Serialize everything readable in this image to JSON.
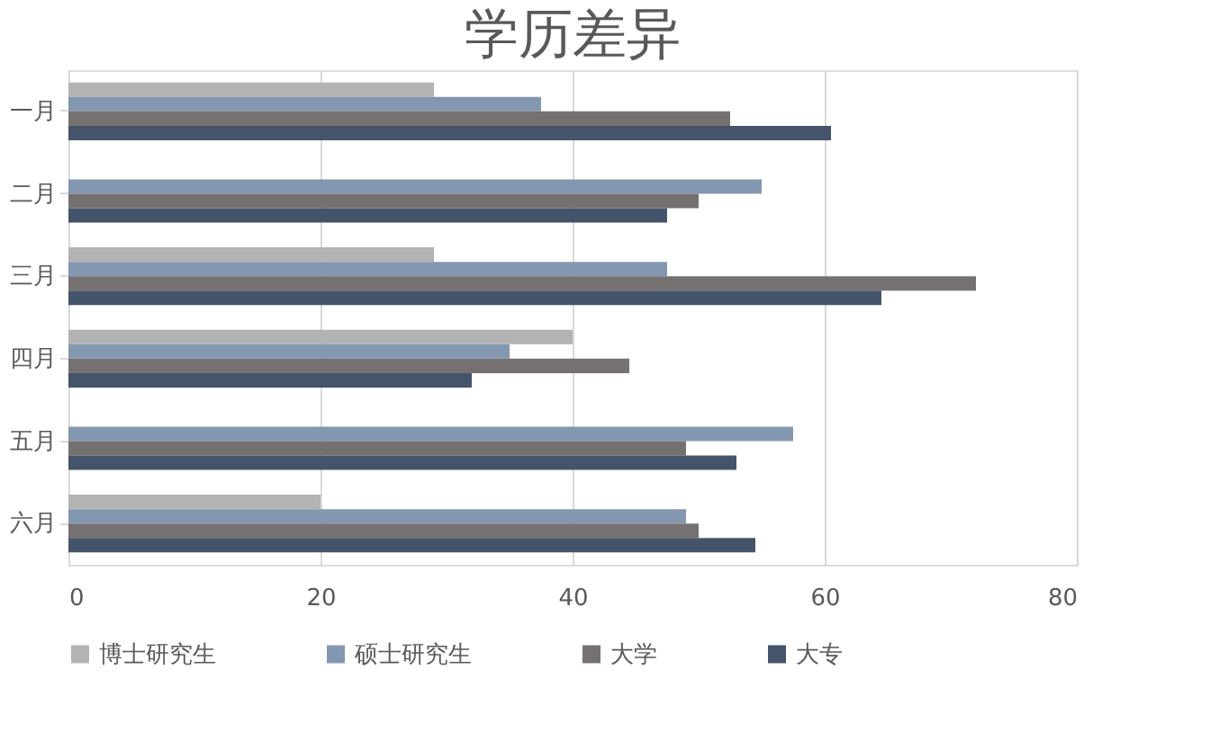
{
  "chart_data": {
    "type": "bar",
    "orientation": "horizontal",
    "title": "学历差异",
    "categories": [
      "一月",
      "二月",
      "三月",
      "四月",
      "五月",
      "六月"
    ],
    "series": [
      {
        "name": "博士研究生",
        "color": "#b3b3b3",
        "values": [
          29,
          0,
          29,
          40,
          0,
          20
        ]
      },
      {
        "name": "硕士研究生",
        "color": "#8497b0",
        "values": [
          37.5,
          55,
          47.5,
          35,
          57.5,
          49
        ]
      },
      {
        "name": "大学",
        "color": "#767171",
        "values": [
          52.5,
          50,
          72,
          44.5,
          49,
          50
        ]
      },
      {
        "name": "大专",
        "color": "#44546a",
        "values": [
          60.5,
          47.5,
          64.5,
          32,
          53,
          54.5
        ]
      }
    ],
    "xlim": [
      0,
      80
    ],
    "xticks": [
      0,
      20,
      40,
      60,
      80
    ],
    "grid": "x",
    "legend": "bottom"
  }
}
